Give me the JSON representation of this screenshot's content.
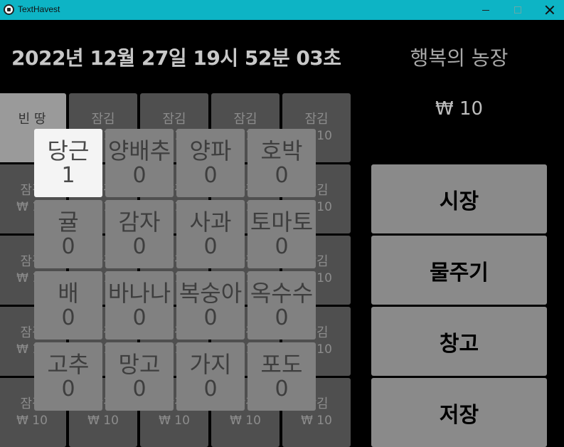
{
  "window": {
    "title": "TextHavest",
    "app_icon": "app-icon",
    "controls": [
      "minimize-icon",
      "maximize-icon",
      "close-icon"
    ]
  },
  "header": {
    "datetime": "2022년 12월 27일 19시 52분 03초",
    "farm_name": "행복의 농장",
    "money": "₩ 10"
  },
  "plots": {
    "empty_label": "빈 땅",
    "locked_label": "잠김",
    "locked_price": "₩ 10",
    "items": [
      {
        "label": "빈 땅",
        "price": ""
      },
      {
        "label": "잠김",
        "price": "₩ 10"
      },
      {
        "label": "잠김",
        "price": "₩ 10"
      },
      {
        "label": "잠김",
        "price": "₩ 10"
      },
      {
        "label": "잠김",
        "price": "₩ 10"
      },
      {
        "label": "잠김",
        "price": "₩ 10"
      },
      {
        "label": "잠김",
        "price": "₩ 10"
      },
      {
        "label": "잠김",
        "price": "₩ 10"
      },
      {
        "label": "잠김",
        "price": "₩ 10"
      },
      {
        "label": "잠김",
        "price": "₩ 10"
      },
      {
        "label": "잠김",
        "price": "₩ 10"
      },
      {
        "label": "잠김",
        "price": "₩ 10"
      },
      {
        "label": "잠김",
        "price": "₩ 10"
      },
      {
        "label": "잠김",
        "price": "₩ 10"
      },
      {
        "label": "잠김",
        "price": "₩ 10"
      },
      {
        "label": "잠김",
        "price": "₩ 10"
      },
      {
        "label": "잠김",
        "price": "₩ 10"
      },
      {
        "label": "잠김",
        "price": "₩ 10"
      },
      {
        "label": "잠김",
        "price": "₩ 10"
      },
      {
        "label": "잠김",
        "price": "₩ 10"
      },
      {
        "label": "잠김",
        "price": "₩ 10"
      },
      {
        "label": "잠김",
        "price": "₩ 10"
      },
      {
        "label": "잠김",
        "price": "₩ 10"
      },
      {
        "label": "잠김",
        "price": "₩ 10"
      },
      {
        "label": "잠김",
        "price": "₩ 10"
      }
    ]
  },
  "seeds": [
    {
      "name": "당근",
      "count": "1"
    },
    {
      "name": "양배추",
      "count": "0"
    },
    {
      "name": "양파",
      "count": "0"
    },
    {
      "name": "호박",
      "count": "0"
    },
    {
      "name": "귤",
      "count": "0"
    },
    {
      "name": "감자",
      "count": "0"
    },
    {
      "name": "사과",
      "count": "0"
    },
    {
      "name": "토마토",
      "count": "0"
    },
    {
      "name": "배",
      "count": "0"
    },
    {
      "name": "바나나",
      "count": "0"
    },
    {
      "name": "복숭아",
      "count": "0"
    },
    {
      "name": "옥수수",
      "count": "0"
    },
    {
      "name": "고추",
      "count": "0"
    },
    {
      "name": "망고",
      "count": "0"
    },
    {
      "name": "가지",
      "count": "0"
    },
    {
      "name": "포도",
      "count": "0"
    }
  ],
  "selected_seed": "당근",
  "actions": {
    "market": "시장",
    "water": "물주기",
    "storage": "창고",
    "save": "저장"
  },
  "colors": {
    "titlebar": "#0db4c5",
    "background": "#000000",
    "button": "#8a8a8a",
    "selected_seed": "#f4f4f4"
  }
}
